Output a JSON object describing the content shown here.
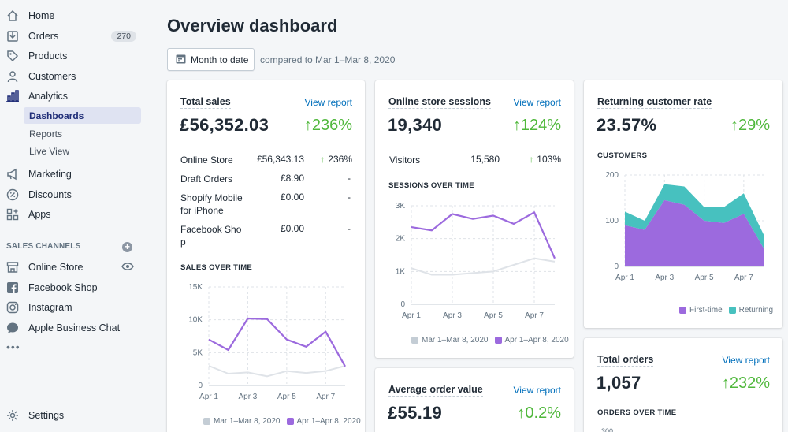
{
  "sidebar": {
    "nav": [
      {
        "label": "Home",
        "icon": "home-icon"
      },
      {
        "label": "Orders",
        "icon": "orders-icon",
        "badge": "270"
      },
      {
        "label": "Products",
        "icon": "tag-icon"
      },
      {
        "label": "Customers",
        "icon": "person-icon"
      },
      {
        "label": "Analytics",
        "icon": "bar-chart-icon"
      }
    ],
    "analytics_sub": [
      {
        "label": "Dashboards",
        "active": true
      },
      {
        "label": "Reports"
      },
      {
        "label": "Live View"
      }
    ],
    "nav2": [
      {
        "label": "Marketing",
        "icon": "megaphone-icon"
      },
      {
        "label": "Discounts",
        "icon": "discount-icon"
      },
      {
        "label": "Apps",
        "icon": "apps-icon"
      }
    ],
    "sales_channels_title": "SALES CHANNELS",
    "channels": [
      {
        "label": "Online Store",
        "icon": "store-icon"
      },
      {
        "label": "Facebook Shop",
        "icon": "facebook-icon"
      },
      {
        "label": "Instagram",
        "icon": "instagram-icon"
      },
      {
        "label": "Apple Business Chat",
        "icon": "chat-icon"
      }
    ],
    "more": "•••",
    "settings": "Settings"
  },
  "header": {
    "title": "Overview dashboard",
    "date_button": "Month to date",
    "compare_text": "compared to Mar 1–Mar 8, 2020"
  },
  "colors": {
    "accent": "#9c6ade",
    "previous": "#dfe3e8",
    "returning": "#47c1bf",
    "positive": "#50b83c",
    "link": "#006fbb"
  },
  "cards": {
    "total_sales": {
      "title": "Total sales",
      "view_report": "View report",
      "value": "£56,352.03",
      "change": "↑236%",
      "rows": [
        {
          "label": "Online Store",
          "value": "£56,343.13",
          "change": "236%",
          "up": true
        },
        {
          "label": "Draft Orders",
          "value": "£8.90",
          "change": "-"
        },
        {
          "label": "Shopify Mobile for iPhone",
          "label_lines": [
            "Shopify Mobile",
            "for iPhone"
          ],
          "value": "£0.00",
          "change": "-"
        },
        {
          "label": "Facebook Shop",
          "label_lines": [
            "Facebook Sho",
            "p"
          ],
          "value": "£0.00",
          "change": "-"
        }
      ],
      "chart_title": "SALES OVER TIME",
      "legend_prev": "Mar 1–Mar 8, 2020",
      "legend_curr": "Apr 1–Apr 8, 2020"
    },
    "sessions": {
      "title": "Online store sessions",
      "view_report": "View report",
      "value": "19,340",
      "change": "↑124%",
      "row": {
        "label": "Visitors",
        "value": "15,580",
        "change": "103%"
      },
      "chart_title": "SESSIONS OVER TIME",
      "legend_prev": "Mar 1–Mar 8, 2020",
      "legend_curr": "Apr 1–Apr 8, 2020"
    },
    "aov": {
      "title": "Average order value",
      "view_report": "View report",
      "value": "£55.19",
      "change": "↑0.2%"
    },
    "returning": {
      "title": "Returning customer rate",
      "value": "23.57%",
      "change": "↑29%",
      "chart_title": "CUSTOMERS",
      "legend_first": "First-time",
      "legend_returning": "Returning"
    },
    "total_orders": {
      "title": "Total orders",
      "view_report": "View report",
      "value": "1,057",
      "change": "↑232%",
      "chart_title": "ORDERS OVER TIME",
      "axis_peek": "300"
    }
  },
  "chart_data": [
    {
      "type": "line",
      "title": "SALES OVER TIME",
      "x": [
        "Apr 1",
        "Apr 2",
        "Apr 3",
        "Apr 4",
        "Apr 5",
        "Apr 6",
        "Apr 7",
        "Apr 8"
      ],
      "xticks": [
        "Apr 1",
        "Apr 3",
        "Apr 5",
        "Apr 7"
      ],
      "yticks": [
        "0",
        "5K",
        "10K",
        "15K"
      ],
      "ylim": [
        0,
        15000
      ],
      "series": [
        {
          "name": "Mar 1–Mar 8, 2020",
          "values": [
            3000,
            1800,
            2000,
            1400,
            2200,
            1900,
            2200,
            3000
          ]
        },
        {
          "name": "Apr 1–Apr 8, 2020",
          "values": [
            7000,
            5400,
            10200,
            10100,
            7000,
            5900,
            8200,
            2900
          ]
        }
      ]
    },
    {
      "type": "line",
      "title": "SESSIONS OVER TIME",
      "x": [
        "Apr 1",
        "Apr 2",
        "Apr 3",
        "Apr 4",
        "Apr 5",
        "Apr 6",
        "Apr 7",
        "Apr 8"
      ],
      "xticks": [
        "Apr 1",
        "Apr 3",
        "Apr 5",
        "Apr 7"
      ],
      "yticks": [
        "0",
        "1K",
        "2K",
        "3K"
      ],
      "ylim": [
        0,
        3000
      ],
      "series": [
        {
          "name": "Mar 1–Mar 8, 2020",
          "values": [
            1100,
            900,
            900,
            950,
            1000,
            1200,
            1400,
            1300
          ]
        },
        {
          "name": "Apr 1–Apr 8, 2020",
          "values": [
            2350,
            2250,
            2750,
            2600,
            2700,
            2450,
            2800,
            1400
          ]
        }
      ]
    },
    {
      "type": "area",
      "title": "CUSTOMERS",
      "x": [
        "Apr 1",
        "Apr 2",
        "Apr 3",
        "Apr 4",
        "Apr 5",
        "Apr 6",
        "Apr 7",
        "Apr 8"
      ],
      "xticks": [
        "Apr 1",
        "Apr 3",
        "Apr 5",
        "Apr 7"
      ],
      "yticks": [
        "0",
        "100",
        "200"
      ],
      "ylim": [
        0,
        200
      ],
      "stacked": true,
      "series": [
        {
          "name": "First-time",
          "values": [
            90,
            80,
            145,
            135,
            100,
            95,
            115,
            40
          ]
        },
        {
          "name": "Returning",
          "values": [
            30,
            20,
            35,
            40,
            30,
            35,
            45,
            30
          ]
        }
      ]
    }
  ]
}
